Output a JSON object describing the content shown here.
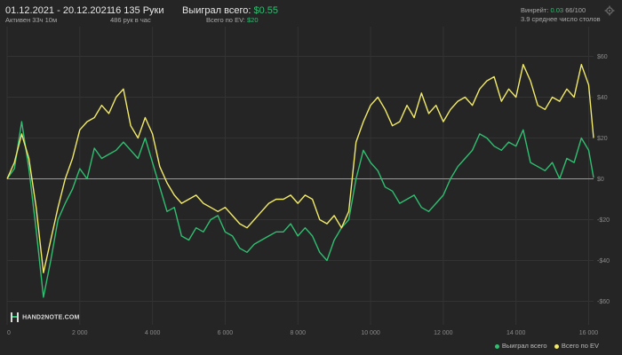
{
  "header": {
    "date_range": "01.12.2021 - 20.12.2021",
    "active": "Активен 33ч 10м",
    "hands": "16 135 Руки",
    "hands_per_hour": "486 рук в час",
    "won_label": "Выиграл всего:",
    "won_value": "$0.55",
    "ev_label": "Всего по EV:",
    "ev_value": "$20",
    "vpip_label": "Винрейт:",
    "vpip_value": "0.03",
    "vpip_rest": "66/100",
    "tables": "3.9 среднее число столов"
  },
  "logo_text": "HAND2NOTE.COM",
  "legend": {
    "won": "Выиграл всего",
    "ev": "Всего по EV"
  },
  "colors": {
    "green": "#2fbf71",
    "yellow": "#f2ea6a",
    "background": "#252525"
  },
  "chart_data": {
    "type": "line",
    "xlabel": "",
    "ylabel": "",
    "xlim": [
      0,
      16135
    ],
    "ylim": [
      -65,
      65
    ],
    "x_ticks": [
      0,
      2000,
      4000,
      6000,
      8000,
      10000,
      12000,
      14000,
      16000
    ],
    "x_tick_labels": [
      "0",
      "2 000",
      "4 000",
      "6 000",
      "8 000",
      "10 000",
      "12 000",
      "14 000",
      "16 000"
    ],
    "y_ticks": [
      60,
      40,
      20,
      0,
      -20,
      -40,
      -60
    ],
    "y_tick_labels": [
      "$60",
      "$40",
      "$20",
      "$0",
      "-$20",
      "-$40",
      "-$60"
    ],
    "grid": true,
    "legend_position": "bottom-right",
    "series": [
      {
        "name": "Выиграл всего",
        "color": "#2fbf71",
        "x": [
          0,
          200,
          400,
          600,
          800,
          1000,
          1200,
          1400,
          1600,
          1800,
          2000,
          2200,
          2400,
          2600,
          2800,
          3000,
          3200,
          3400,
          3600,
          3800,
          4000,
          4200,
          4400,
          4600,
          4800,
          5000,
          5200,
          5400,
          5600,
          5800,
          6000,
          6200,
          6400,
          6600,
          6800,
          7000,
          7200,
          7400,
          7600,
          7800,
          8000,
          8200,
          8400,
          8600,
          8800,
          9000,
          9200,
          9400,
          9600,
          9800,
          10000,
          10200,
          10400,
          10600,
          10800,
          11000,
          11200,
          11400,
          11600,
          11800,
          12000,
          12200,
          12400,
          12600,
          12800,
          13000,
          13200,
          13400,
          13600,
          13800,
          14000,
          14200,
          14400,
          14600,
          14800,
          15000,
          15200,
          15400,
          15600,
          15800,
          16000,
          16135
        ],
        "values": [
          0,
          5,
          28,
          5,
          -25,
          -58,
          -40,
          -20,
          -12,
          -5,
          5,
          0,
          15,
          10,
          12,
          14,
          18,
          14,
          10,
          20,
          8,
          -4,
          -16,
          -14,
          -28,
          -30,
          -24,
          -26,
          -20,
          -18,
          -26,
          -28,
          -34,
          -36,
          -32,
          -30,
          -28,
          -26,
          -26,
          -22,
          -28,
          -24,
          -28,
          -36,
          -40,
          -30,
          -24,
          -20,
          0,
          14,
          8,
          4,
          -4,
          -6,
          -12,
          -10,
          -8,
          -14,
          -16,
          -12,
          -8,
          0,
          6,
          10,
          14,
          22,
          20,
          16,
          14,
          18,
          16,
          24,
          8,
          6,
          4,
          8,
          0,
          10,
          8,
          20,
          14,
          0.55
        ]
      },
      {
        "name": "Всего по EV",
        "color": "#f2ea6a",
        "x": [
          0,
          200,
          400,
          600,
          800,
          1000,
          1200,
          1400,
          1600,
          1800,
          2000,
          2200,
          2400,
          2600,
          2800,
          3000,
          3200,
          3400,
          3600,
          3800,
          4000,
          4200,
          4400,
          4600,
          4800,
          5000,
          5200,
          5400,
          5600,
          5800,
          6000,
          6200,
          6400,
          6600,
          6800,
          7000,
          7200,
          7400,
          7600,
          7800,
          8000,
          8200,
          8400,
          8600,
          8800,
          9000,
          9200,
          9400,
          9600,
          9800,
          10000,
          10200,
          10400,
          10600,
          10800,
          11000,
          11200,
          11400,
          11600,
          11800,
          12000,
          12200,
          12400,
          12600,
          12800,
          13000,
          13200,
          13400,
          13600,
          13800,
          14000,
          14200,
          14400,
          14600,
          14800,
          15000,
          15200,
          15400,
          15600,
          15800,
          16000,
          16135
        ],
        "values": [
          0,
          8,
          22,
          10,
          -14,
          -46,
          -30,
          -14,
          0,
          10,
          24,
          28,
          30,
          36,
          32,
          40,
          44,
          26,
          20,
          30,
          22,
          6,
          -2,
          -8,
          -12,
          -10,
          -8,
          -12,
          -14,
          -16,
          -14,
          -18,
          -22,
          -24,
          -20,
          -16,
          -12,
          -10,
          -10,
          -8,
          -12,
          -8,
          -10,
          -20,
          -22,
          -18,
          -24,
          -16,
          18,
          28,
          36,
          40,
          34,
          26,
          28,
          36,
          30,
          42,
          32,
          36,
          28,
          34,
          38,
          40,
          36,
          44,
          48,
          50,
          38,
          44,
          40,
          56,
          48,
          36,
          34,
          40,
          38,
          44,
          40,
          56,
          46,
          20
        ]
      }
    ]
  }
}
